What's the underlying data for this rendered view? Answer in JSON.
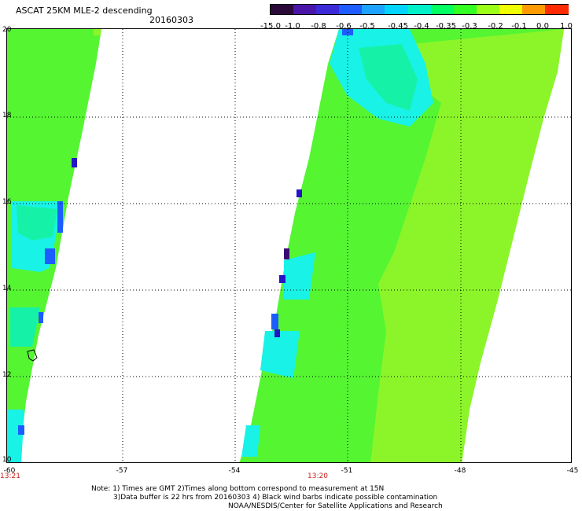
{
  "header": {
    "title": "ASCAT 25KM MLE-2 descending",
    "date": "20160303"
  },
  "colorbar": {
    "tick_labels": [
      "-15.0",
      "-1.0",
      "-0.8",
      "-0.6",
      "-0.5",
      "-0.45",
      "-0.4",
      "-0.35",
      "-0.3",
      "-0.2",
      "-0.1",
      "0.0",
      "1.0"
    ],
    "colors": [
      "#2b0a3a",
      "#4a16a8",
      "#3b2ad6",
      "#1e5cff",
      "#1ea2ff",
      "#00d4ff",
      "#00f0c8",
      "#00ff60",
      "#33ff22",
      "#9cff18",
      "#f0ff00",
      "#ff9a00",
      "#ff2a00"
    ]
  },
  "map": {
    "lat_labels": [
      "20",
      "18",
      "16",
      "14",
      "12",
      "10"
    ],
    "lon_labels": [
      "-60",
      "-57",
      "-54",
      "-51",
      "-48",
      "-45"
    ],
    "pass_times": [
      "13:21",
      "13:20"
    ],
    "swath_colors": {
      "base": "#55f532",
      "light": "#8cf52a",
      "cyan": "#19f2e6",
      "aqua": "#15f2a8",
      "blue": "#1b5dff",
      "deep": "#2615c8",
      "purple": "#3a0a73"
    }
  },
  "footer": {
    "line1": "Note: 1) Times are GMT 2)Times along bottom correspond to measurement at 15N",
    "line2": "3)Data buffer is 22 hrs from 20160303 4) Black wind barbs indicate possible contamination",
    "line3": "NOAA/NESDIS/Center for Satellite Applications and Research"
  }
}
